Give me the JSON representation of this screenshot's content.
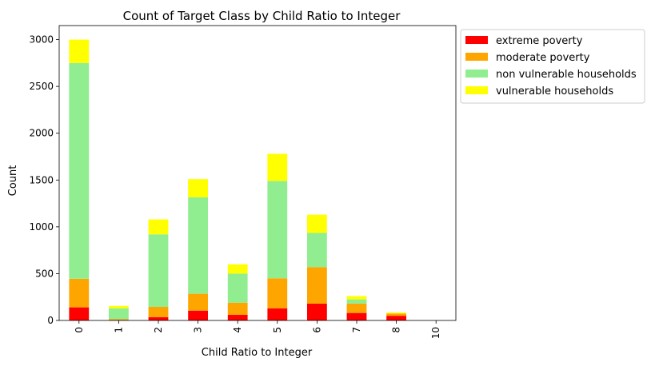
{
  "chart_data": {
    "type": "bar",
    "stacked": true,
    "title": "Count of Target Class by Child Ratio to Integer",
    "xlabel": "Child Ratio to Integer",
    "ylabel": "Count",
    "categories": [
      "0",
      "1",
      "2",
      "3",
      "4",
      "5",
      "6",
      "7",
      "8",
      "10"
    ],
    "ylim": [
      0,
      3150
    ],
    "yticks": [
      0,
      500,
      1000,
      1500,
      2000,
      2500,
      3000
    ],
    "grid": false,
    "legend_position": "outside-top-right",
    "series": [
      {
        "name": "extreme poverty",
        "color": "#ff0000",
        "values": [
          140,
          5,
          35,
          105,
          60,
          130,
          180,
          80,
          50,
          0
        ]
      },
      {
        "name": "moderate poverty",
        "color": "#ffa500",
        "values": [
          305,
          10,
          110,
          180,
          130,
          320,
          390,
          100,
          25,
          0
        ]
      },
      {
        "name": "non vulnerable households",
        "color": "#90ee90",
        "values": [
          2305,
          115,
          775,
          1030,
          310,
          1040,
          365,
          45,
          0,
          0
        ]
      },
      {
        "name": "vulnerable households",
        "color": "#ffff00",
        "values": [
          250,
          25,
          160,
          195,
          100,
          290,
          195,
          35,
          10,
          0
        ]
      }
    ]
  }
}
